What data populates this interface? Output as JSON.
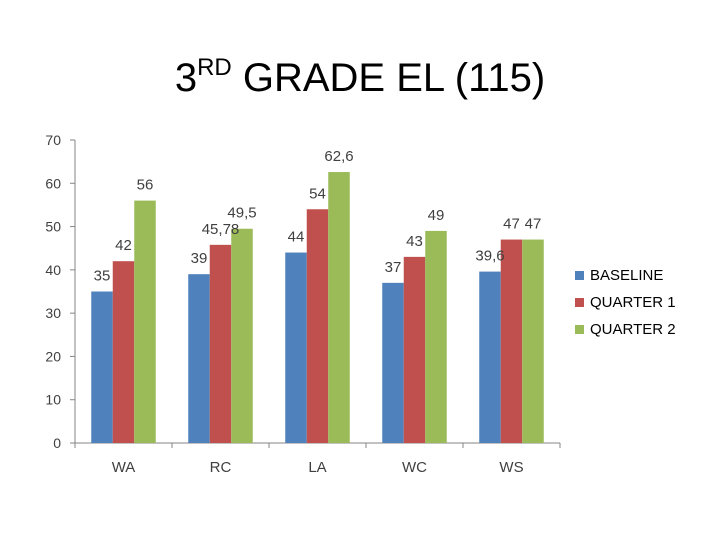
{
  "title": {
    "main": "3",
    "sup": "RD",
    "rest": " GRADE EL (115)"
  },
  "chart_data": {
    "type": "bar",
    "categories": [
      "WA",
      "RC",
      "LA",
      "WC",
      "WS"
    ],
    "series": [
      {
        "name": "BASELINE",
        "color": "#4f81bd",
        "values": [
          35,
          39,
          44,
          37,
          39.6
        ],
        "labels": [
          "35",
          "39",
          "44",
          "37",
          "39,6"
        ]
      },
      {
        "name": "QUARTER 1",
        "color": "#c0504d",
        "values": [
          42,
          45.78,
          54,
          43,
          47
        ],
        "labels": [
          "42",
          "45,78",
          "54",
          "43",
          "47"
        ]
      },
      {
        "name": "QUARTER 2",
        "color": "#9bbb59",
        "values": [
          56,
          49.5,
          62.6,
          49,
          47
        ],
        "labels": [
          "56",
          "49,5",
          "62,6",
          "49",
          "47"
        ]
      }
    ],
    "ylim": [
      0,
      70
    ],
    "yticks": [
      0,
      10,
      20,
      30,
      40,
      50,
      60,
      70
    ],
    "grid": false,
    "legend": "right"
  }
}
